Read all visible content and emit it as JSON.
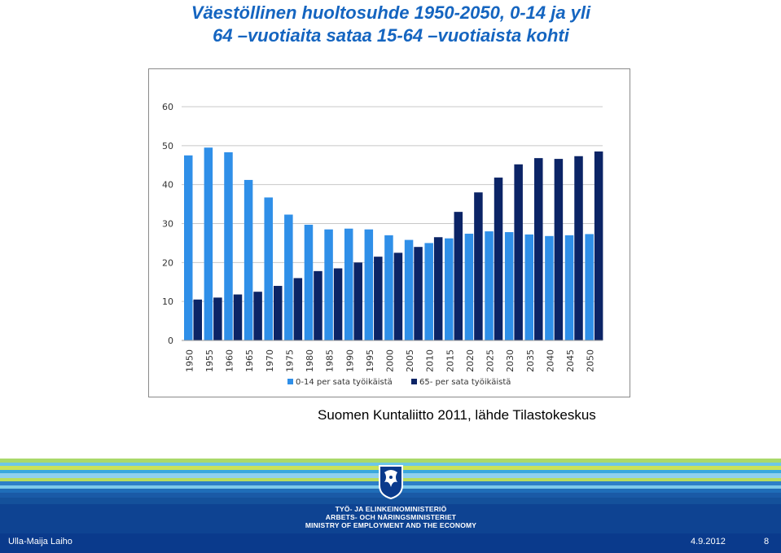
{
  "slide": {
    "title_line1": "Väestöllinen huoltosuhde 1950-2050, 0-14 ja yli",
    "title_line2": "64 –vuotiaita sataa 15-64 –vuotiaista kohti",
    "source": "Suomen Kuntaliitto 2011, lähde Tilastokeskus",
    "footer_author": "Ulla-Maija Laiho",
    "footer_date": "4.9.2012",
    "footer_page": "8",
    "ministry_fi": "TYÖ- JA ELINKEINOMINISTERIÖ",
    "ministry_sv": "ARBETS- OCH NÄRINGSMINISTERIET",
    "ministry_en": "MINISTRY OF EMPLOYMENT AND THE ECONOMY",
    "logo_icon": "finnish-lion-emblem-icon"
  },
  "colors": {
    "title": "#1565c0",
    "series_0_14": "#2f8fe8",
    "series_65": "#0b2466",
    "footer": "#0a3a8c"
  },
  "chart_data": {
    "type": "bar",
    "categories": [
      "1950",
      "1955",
      "1960",
      "1965",
      "1970",
      "1975",
      "1980",
      "1985",
      "1990",
      "1995",
      "2000",
      "2005",
      "2010",
      "2015",
      "2020",
      "2025",
      "2030",
      "2035",
      "2040",
      "2045",
      "2050"
    ],
    "series": [
      {
        "name": "0-14 per sata työikäistä",
        "values": [
          47.5,
          49.5,
          48.3,
          41.2,
          36.7,
          32.3,
          29.7,
          28.5,
          28.7,
          28.5,
          27.0,
          25.8,
          25.0,
          26.2,
          27.4,
          28.0,
          27.8,
          27.2,
          26.8,
          27.0,
          27.3
        ]
      },
      {
        "name": "65- per sata työikäistä",
        "values": [
          10.5,
          11.0,
          11.8,
          12.5,
          14.0,
          16.0,
          17.8,
          18.5,
          20.0,
          21.5,
          22.5,
          24.0,
          26.5,
          33.0,
          38.0,
          41.8,
          45.2,
          46.8,
          46.6,
          47.3,
          48.5
        ]
      }
    ],
    "ylim": [
      0,
      60
    ],
    "yticks": [
      0,
      10,
      20,
      30,
      40,
      50,
      60
    ],
    "grid": true,
    "legend": "bottom"
  }
}
